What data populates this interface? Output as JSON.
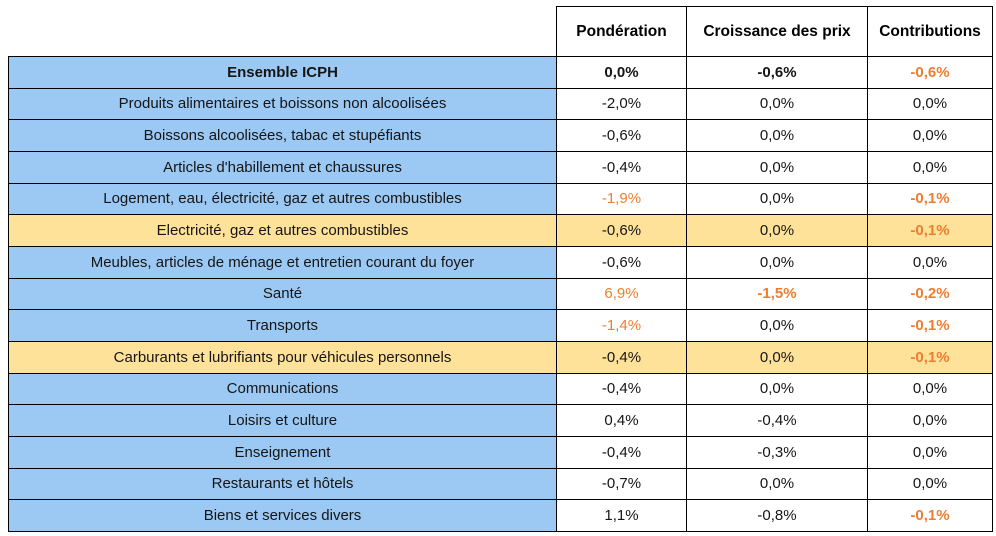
{
  "colors": {
    "blue_row": "#9CC9F4",
    "yellow_row": "#FFE299",
    "orange_text": "#ED7D31",
    "border": "#000000"
  },
  "table": {
    "columns": [
      "Pondération",
      "Croissance des prix",
      "Contributions"
    ],
    "rows": [
      {
        "label": "Ensemble ICPH",
        "bg": "blue",
        "label_bold": true,
        "values": [
          {
            "text": "0,0%",
            "orange": false,
            "bold": true
          },
          {
            "text": "-0,6%",
            "orange": false,
            "bold": true
          },
          {
            "text": "-0,6%",
            "orange": true,
            "bold": true
          }
        ]
      },
      {
        "label": "Produits alimentaires et boissons non alcoolisées",
        "bg": "blue",
        "label_bold": false,
        "values": [
          {
            "text": "-2,0%",
            "orange": false,
            "bold": false
          },
          {
            "text": "0,0%",
            "orange": false,
            "bold": false
          },
          {
            "text": "0,0%",
            "orange": false,
            "bold": false
          }
        ]
      },
      {
        "label": "Boissons alcoolisées, tabac et stupéfiants",
        "bg": "blue",
        "label_bold": false,
        "values": [
          {
            "text": "-0,6%",
            "orange": false,
            "bold": false
          },
          {
            "text": "0,0%",
            "orange": false,
            "bold": false
          },
          {
            "text": "0,0%",
            "orange": false,
            "bold": false
          }
        ]
      },
      {
        "label": "Articles d'habillement et chaussures",
        "bg": "blue",
        "label_bold": false,
        "values": [
          {
            "text": "-0,4%",
            "orange": false,
            "bold": false
          },
          {
            "text": "0,0%",
            "orange": false,
            "bold": false
          },
          {
            "text": "0,0%",
            "orange": false,
            "bold": false
          }
        ]
      },
      {
        "label": "Logement, eau, électricité, gaz et autres combustibles",
        "bg": "blue",
        "label_bold": false,
        "values": [
          {
            "text": "-1,9%",
            "orange": true,
            "bold": false
          },
          {
            "text": "0,0%",
            "orange": false,
            "bold": false
          },
          {
            "text": "-0,1%",
            "orange": true,
            "bold": true
          }
        ]
      },
      {
        "label": "Electricité, gaz et autres combustibles",
        "bg": "yellow",
        "label_bold": false,
        "values": [
          {
            "text": "-0,6%",
            "orange": false,
            "bold": false
          },
          {
            "text": "0,0%",
            "orange": false,
            "bold": false
          },
          {
            "text": "-0,1%",
            "orange": true,
            "bold": true
          }
        ]
      },
      {
        "label": "Meubles, articles de ménage et entretien courant du foyer",
        "bg": "blue",
        "label_bold": false,
        "values": [
          {
            "text": "-0,6%",
            "orange": false,
            "bold": false
          },
          {
            "text": "0,0%",
            "orange": false,
            "bold": false
          },
          {
            "text": "0,0%",
            "orange": false,
            "bold": false
          }
        ]
      },
      {
        "label": "Santé",
        "bg": "blue",
        "label_bold": false,
        "values": [
          {
            "text": "6,9%",
            "orange": true,
            "bold": false
          },
          {
            "text": "-1,5%",
            "orange": true,
            "bold": true
          },
          {
            "text": "-0,2%",
            "orange": true,
            "bold": true
          }
        ]
      },
      {
        "label": "Transports",
        "bg": "blue",
        "label_bold": false,
        "values": [
          {
            "text": "-1,4%",
            "orange": true,
            "bold": false
          },
          {
            "text": "0,0%",
            "orange": false,
            "bold": false
          },
          {
            "text": "-0,1%",
            "orange": true,
            "bold": true
          }
        ]
      },
      {
        "label": "Carburants et lubrifiants pour véhicules personnels",
        "bg": "yellow",
        "label_bold": false,
        "values": [
          {
            "text": "-0,4%",
            "orange": false,
            "bold": false
          },
          {
            "text": "0,0%",
            "orange": false,
            "bold": false
          },
          {
            "text": "-0,1%",
            "orange": true,
            "bold": true
          }
        ]
      },
      {
        "label": "Communications",
        "bg": "blue",
        "label_bold": false,
        "values": [
          {
            "text": "-0,4%",
            "orange": false,
            "bold": false
          },
          {
            "text": "0,0%",
            "orange": false,
            "bold": false
          },
          {
            "text": "0,0%",
            "orange": false,
            "bold": false
          }
        ]
      },
      {
        "label": "Loisirs et culture",
        "bg": "blue",
        "label_bold": false,
        "values": [
          {
            "text": "0,4%",
            "orange": false,
            "bold": false
          },
          {
            "text": "-0,4%",
            "orange": false,
            "bold": false
          },
          {
            "text": "0,0%",
            "orange": false,
            "bold": false
          }
        ]
      },
      {
        "label": "Enseignement",
        "bg": "blue",
        "label_bold": false,
        "values": [
          {
            "text": "-0,4%",
            "orange": false,
            "bold": false
          },
          {
            "text": "-0,3%",
            "orange": false,
            "bold": false
          },
          {
            "text": "0,0%",
            "orange": false,
            "bold": false
          }
        ]
      },
      {
        "label": "Restaurants et hôtels",
        "bg": "blue",
        "label_bold": false,
        "values": [
          {
            "text": "-0,7%",
            "orange": false,
            "bold": false
          },
          {
            "text": "0,0%",
            "orange": false,
            "bold": false
          },
          {
            "text": "0,0%",
            "orange": false,
            "bold": false
          }
        ]
      },
      {
        "label": "Biens et services divers",
        "bg": "blue",
        "label_bold": false,
        "values": [
          {
            "text": "1,1%",
            "orange": false,
            "bold": false
          },
          {
            "text": "-0,8%",
            "orange": false,
            "bold": false
          },
          {
            "text": "-0,1%",
            "orange": true,
            "bold": true
          }
        ]
      }
    ]
  }
}
